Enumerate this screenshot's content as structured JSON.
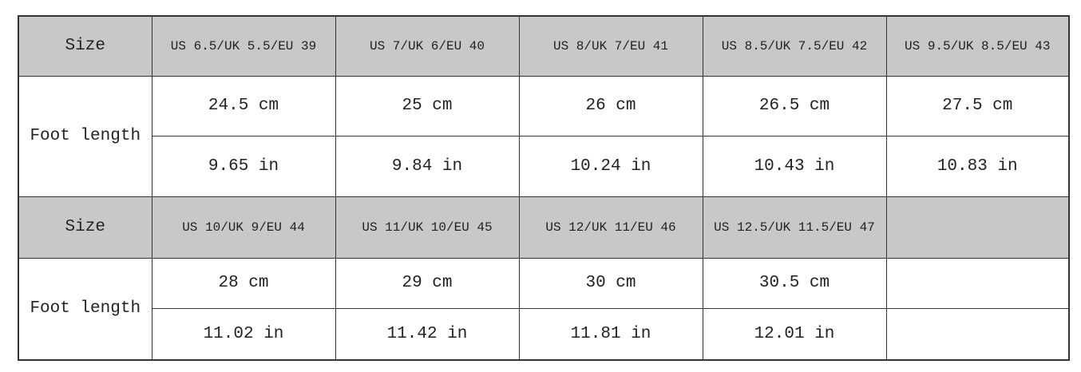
{
  "colors": {
    "header_bg": "#c8c8c8",
    "border": "#333333"
  },
  "table1": {
    "size_label": "Size",
    "foot_label": "Foot length",
    "sizes": [
      "US 6.5/UK 5.5/EU 39",
      "US 7/UK 6/EU 40",
      "US 8/UK 7/EU 41",
      "US 8.5/UK 7.5/EU 42",
      "US 9.5/UK 8.5/EU 43"
    ],
    "cm": [
      "24.5 cm",
      "25 cm",
      "26 cm",
      "26.5 cm",
      "27.5 cm"
    ],
    "in": [
      "9.65 in",
      "9.84 in",
      "10.24 in",
      "10.43 in",
      "10.83 in"
    ]
  },
  "table2": {
    "size_label": "Size",
    "foot_label": "Foot length",
    "sizes": [
      "US 10/UK 9/EU 44",
      "US 11/UK 10/EU 45",
      "US 12/UK 11/EU 46",
      "US 12.5/UK 11.5/EU 47",
      ""
    ],
    "cm": [
      "28 cm",
      "29 cm",
      "30 cm",
      "30.5 cm",
      ""
    ],
    "in": [
      "11.02 in",
      "11.42 in",
      "11.81 in",
      "12.01 in",
      ""
    ]
  }
}
